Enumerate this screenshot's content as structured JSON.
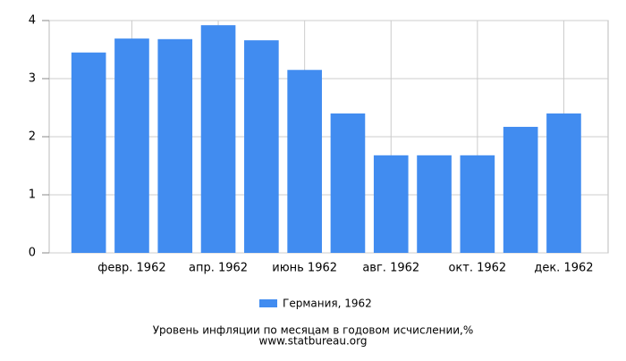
{
  "chart_data": {
    "type": "bar",
    "title": "Уровень инфляции по месяцам в годовом исчислении,%",
    "subtitle": "www.statbureau.org",
    "categories": [
      null,
      "февр. 1962",
      null,
      "апр. 1962",
      null,
      "июнь 1962",
      null,
      "авг. 1962",
      null,
      "окт. 1962",
      null,
      "дек. 1962"
    ],
    "series": [
      {
        "name": "Германия, 1962",
        "color": "#418cf0",
        "values": [
          3.45,
          3.69,
          3.68,
          3.92,
          3.66,
          3.15,
          2.4,
          1.68,
          1.68,
          1.68,
          2.17,
          2.4
        ]
      }
    ],
    "ylim": [
      0,
      4
    ],
    "yticks": [
      0,
      1,
      2,
      3,
      4
    ],
    "grid": true
  }
}
